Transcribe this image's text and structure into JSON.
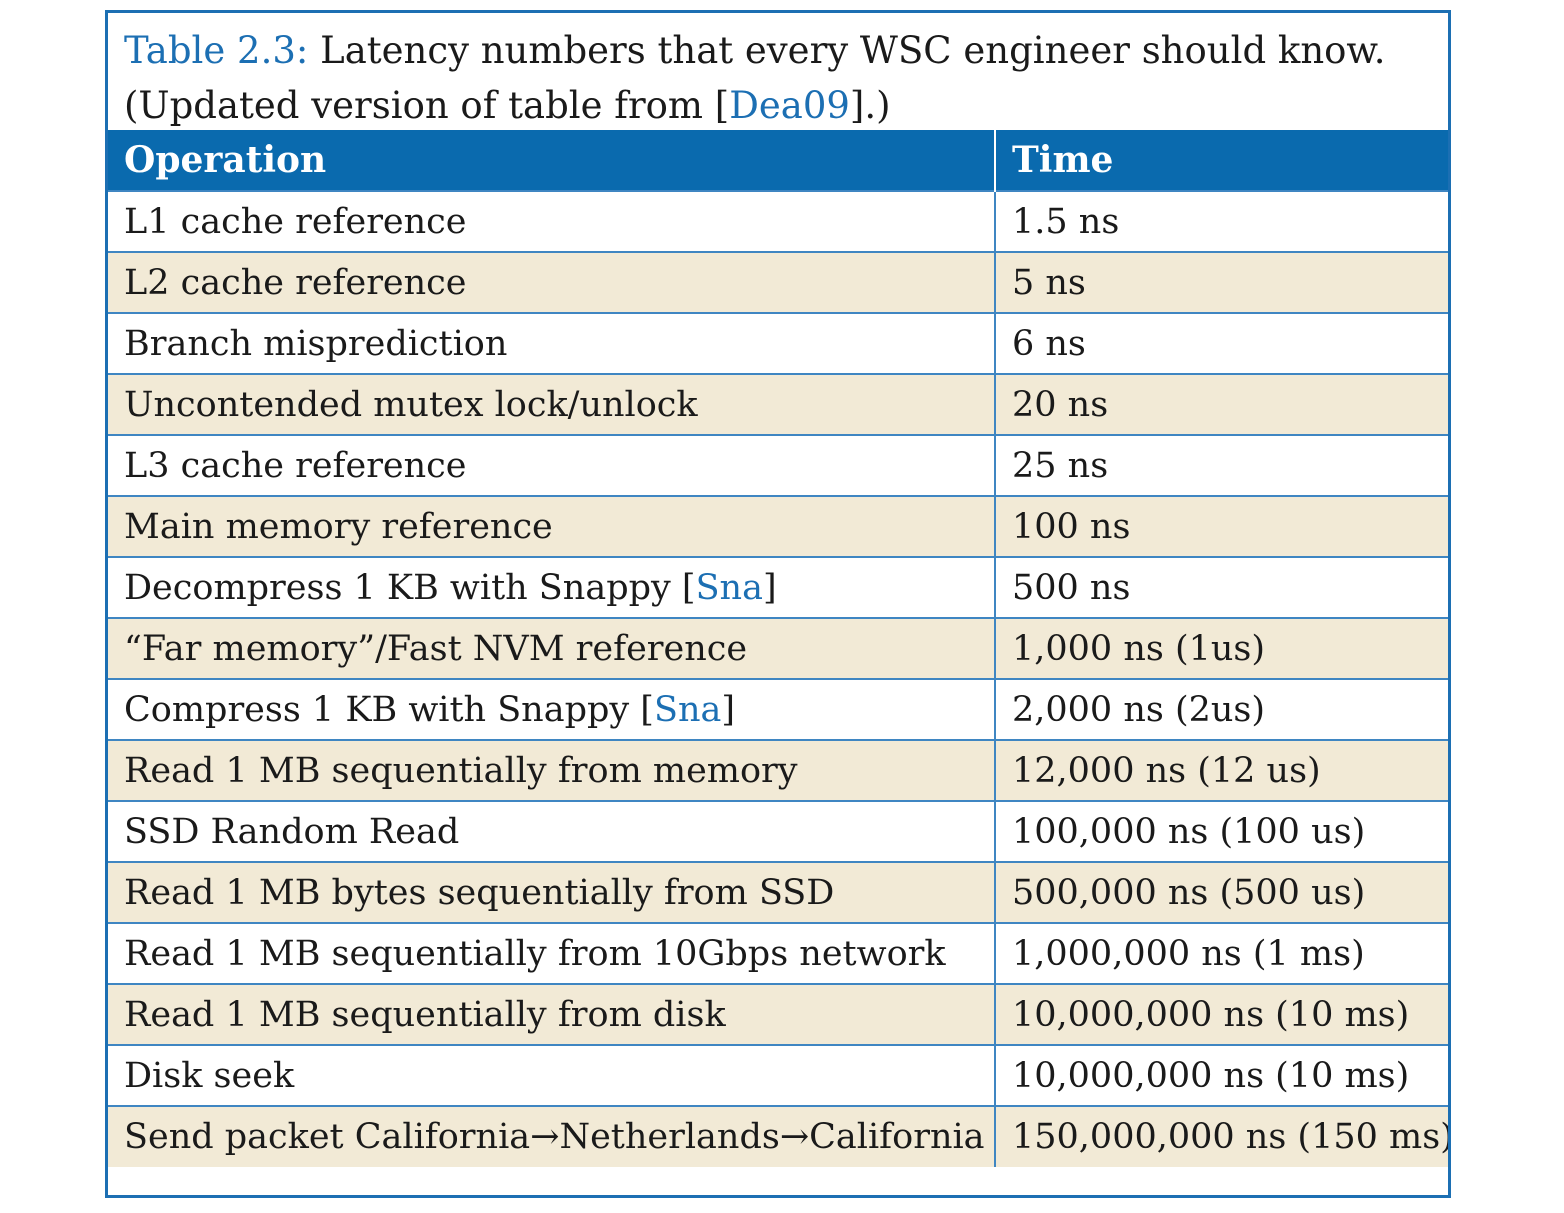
{
  "caption": {
    "label": "Table 2.3:",
    "text_before_cite": " Latency numbers that every WSC engineer should know. (Updated version of table from [",
    "cite": "Dea09",
    "text_after_cite": "].)"
  },
  "headers": {
    "operation": "Operation",
    "time": "Time"
  },
  "rows": [
    {
      "op_before": "L1 cache reference",
      "op_cite": "",
      "op_after": "",
      "time": "1.5 ns"
    },
    {
      "op_before": "L2 cache reference",
      "op_cite": "",
      "op_after": "",
      "time": "5 ns"
    },
    {
      "op_before": "Branch misprediction",
      "op_cite": "",
      "op_after": "",
      "time": "6 ns"
    },
    {
      "op_before": "Uncontended mutex lock/unlock",
      "op_cite": "",
      "op_after": "",
      "time": "20 ns"
    },
    {
      "op_before": "L3 cache reference",
      "op_cite": "",
      "op_after": "",
      "time": "25 ns"
    },
    {
      "op_before": "Main memory reference",
      "op_cite": "",
      "op_after": "",
      "time": "100 ns"
    },
    {
      "op_before": "Decompress 1 KB with Snappy [",
      "op_cite": "Sna",
      "op_after": "]",
      "time": "500 ns"
    },
    {
      "op_before": "“Far memory”/Fast NVM reference",
      "op_cite": "",
      "op_after": "",
      "time": "1,000 ns (1us)"
    },
    {
      "op_before": "Compress 1 KB with Snappy [",
      "op_cite": "Sna",
      "op_after": "]",
      "time": "2,000 ns (2us)"
    },
    {
      "op_before": "Read 1 MB sequentially from memory",
      "op_cite": "",
      "op_after": "",
      "time": "12,000 ns (12 us)"
    },
    {
      "op_before": "SSD Random Read",
      "op_cite": "",
      "op_after": "",
      "time": "100,000 ns (100 us)"
    },
    {
      "op_before": "Read 1 MB bytes sequentially from SSD",
      "op_cite": "",
      "op_after": "",
      "time": "500,000 ns (500 us)"
    },
    {
      "op_before": "Read 1 MB sequentially from 10Gbps network",
      "op_cite": "",
      "op_after": "",
      "time": "1,000,000 ns (1 ms)"
    },
    {
      "op_before": "Read 1 MB sequentially from disk",
      "op_cite": "",
      "op_after": "",
      "time": "10,000,000 ns (10 ms)"
    },
    {
      "op_before": "Disk seek",
      "op_cite": "",
      "op_after": "",
      "time": "10,000,000 ns (10 ms)"
    },
    {
      "op_before": "Send packet California→Netherlands→California",
      "op_cite": "",
      "op_after": "",
      "time": "150,000,000 ns (150 ms)"
    }
  ],
  "colors": {
    "accent_blue": "#1c6fb3",
    "header_bg": "#0a6aae",
    "stripe_bg": "#f2ead6"
  }
}
